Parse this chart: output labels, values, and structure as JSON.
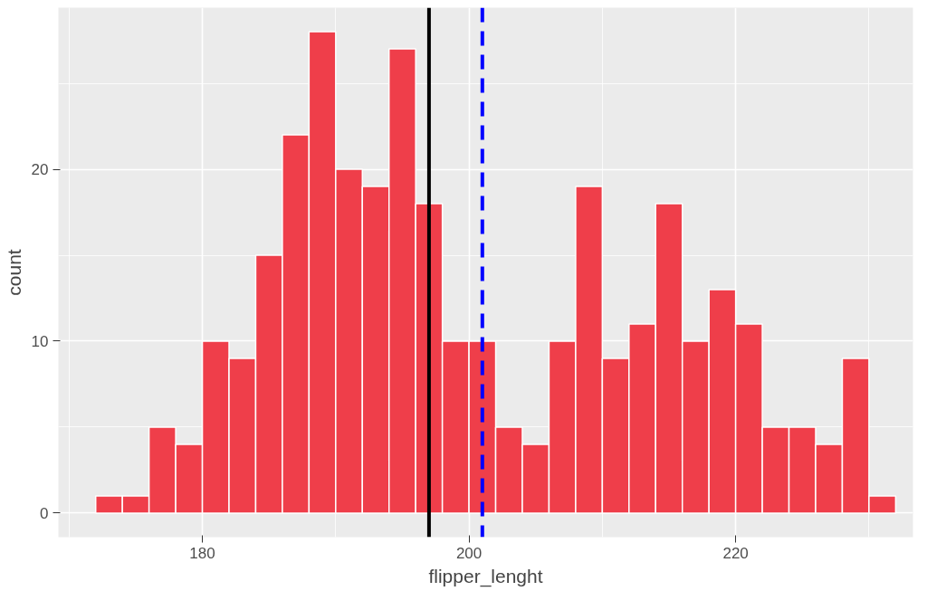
{
  "chart_data": {
    "type": "histogram",
    "xlabel": "flipper_lenght",
    "ylabel": "count",
    "bins": [
      172,
      174,
      176,
      178,
      180,
      182,
      184,
      186,
      188,
      190,
      192,
      194,
      196,
      198,
      200,
      202,
      204,
      206,
      208,
      210,
      212,
      214,
      216,
      218,
      220,
      222,
      224,
      226,
      228,
      230,
      232
    ],
    "values": [
      1,
      1,
      5,
      4,
      10,
      9,
      15,
      22,
      28,
      20,
      19,
      27,
      18,
      10,
      10,
      5,
      4,
      10,
      19,
      9,
      11,
      18,
      10,
      13,
      11,
      5,
      5,
      4,
      9,
      1
    ],
    "color": "#ef3e4a",
    "xlim": [
      169.2,
      233.3
    ],
    "ylim": [
      -1.4,
      29.4
    ],
    "xticks": [
      180,
      200,
      220
    ],
    "yticks": [
      0,
      10,
      20
    ],
    "grid": true,
    "ref_lines": [
      {
        "axis": "x",
        "value": 197,
        "color": "#000000",
        "line_style": "solid"
      },
      {
        "axis": "x",
        "value": 201,
        "color": "#0000ff",
        "line_style": "dashed"
      }
    ]
  }
}
